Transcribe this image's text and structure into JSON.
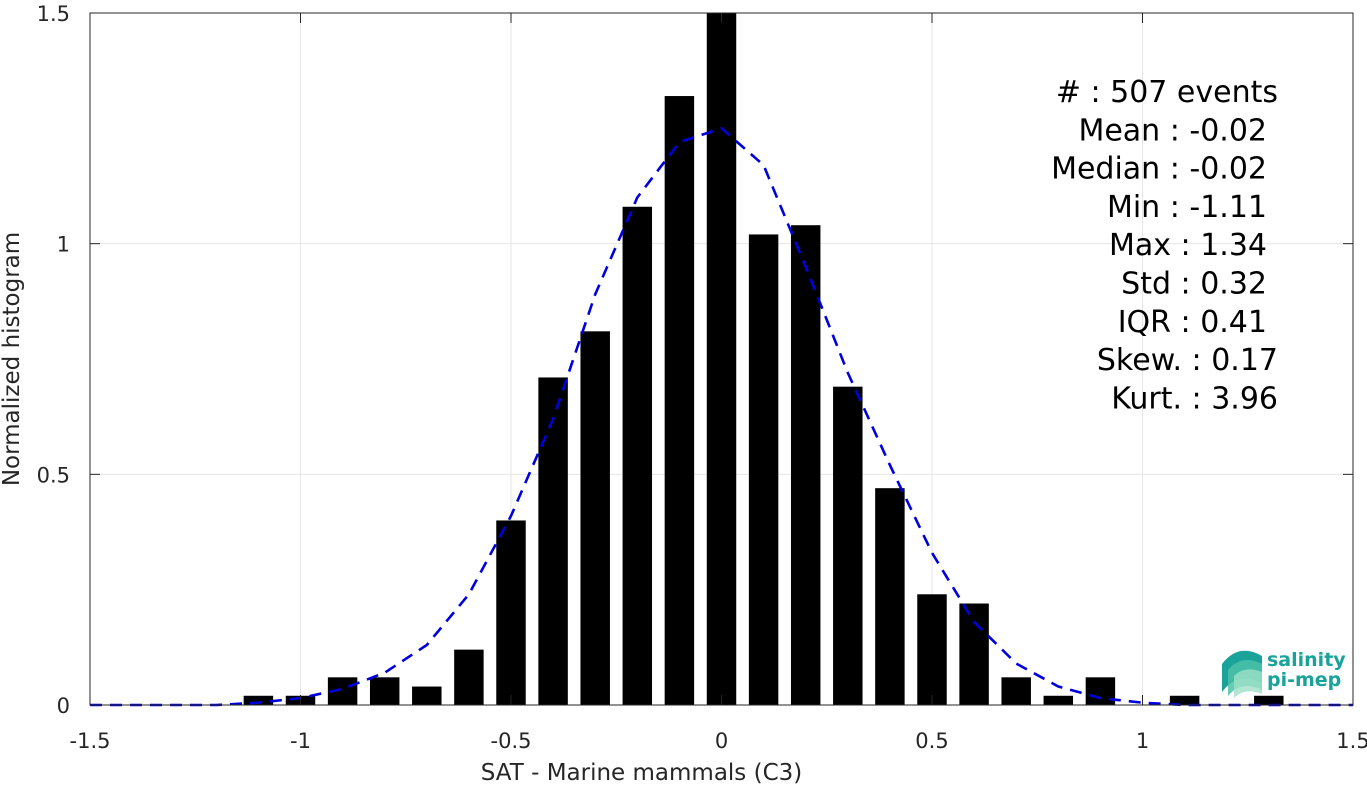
{
  "chart_data": {
    "type": "bar",
    "xlabel": "SAT - Marine mammals (C3)",
    "ylabel": "Normalized histogram",
    "xlim": [
      -1.5,
      1.5
    ],
    "ylim": [
      0,
      1.5
    ],
    "xticks": [
      -1.5,
      -1,
      -0.5,
      0,
      0.5,
      1,
      1.5
    ],
    "xtick_labels": [
      "-1.5",
      "-1",
      "-0.5",
      "0",
      "0.5",
      "1",
      "1.5"
    ],
    "yticks": [
      0,
      0.5,
      1,
      1.5
    ],
    "ytick_labels": [
      "0",
      "0.5",
      "1",
      "1.5"
    ],
    "grid": true,
    "bar_color": "#000000",
    "bin_centers": [
      -1.1,
      -1.0,
      -0.9,
      -0.8,
      -0.7,
      -0.6,
      -0.5,
      -0.4,
      -0.3,
      -0.2,
      -0.1,
      0.0,
      0.1,
      0.2,
      0.3,
      0.4,
      0.5,
      0.6,
      0.7,
      0.8,
      0.9,
      1.0,
      1.1,
      1.2,
      1.3
    ],
    "values": [
      0.02,
      0.02,
      0.06,
      0.06,
      0.04,
      0.12,
      0.4,
      0.71,
      0.81,
      1.08,
      1.32,
      1.5,
      1.02,
      1.04,
      0.69,
      0.47,
      0.24,
      0.22,
      0.06,
      0.02,
      0.06,
      0.0,
      0.02,
      0.0,
      0.02
    ],
    "fit_curve": {
      "color": "#0000dd",
      "style": "dashed",
      "x": [
        -1.5,
        -1.4,
        -1.3,
        -1.2,
        -1.1,
        -1.0,
        -0.9,
        -0.8,
        -0.7,
        -0.6,
        -0.5,
        -0.4,
        -0.3,
        -0.2,
        -0.1,
        0.0,
        0.1,
        0.2,
        0.3,
        0.4,
        0.5,
        0.6,
        0.7,
        0.8,
        0.9,
        1.0,
        1.1,
        1.2,
        1.3,
        1.4,
        1.5
      ],
      "y": [
        0.0,
        0.0,
        0.0,
        0.0,
        0.005,
        0.015,
        0.035,
        0.07,
        0.13,
        0.24,
        0.41,
        0.62,
        0.89,
        1.1,
        1.22,
        1.25,
        1.17,
        0.95,
        0.72,
        0.52,
        0.33,
        0.18,
        0.09,
        0.04,
        0.015,
        0.005,
        0.0,
        0.0,
        0.0,
        0.0,
        0.0
      ]
    },
    "annotations": [
      "#  : 507 events",
      "Mean : -0.02",
      "Median : -0.02",
      "Min : -1.11",
      "Max : 1.34",
      "Std : 0.32",
      "IQR : 0.41",
      "Skew. : 0.17",
      "Kurt. : 3.96"
    ]
  },
  "logo": {
    "line1": "salinity",
    "line2": "pi-mep",
    "color": "#1aa39a"
  }
}
